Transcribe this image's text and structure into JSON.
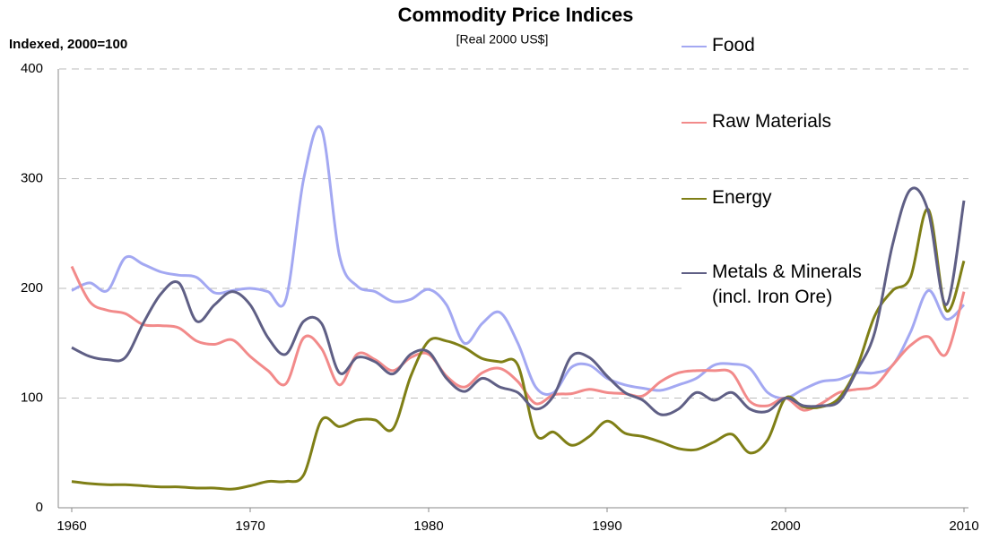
{
  "chart_data": {
    "type": "line",
    "title": "Commodity Price Indices",
    "subtitle": "[Real 2000 US$]",
    "y_label": "Indexed, 2000=100",
    "x": [
      1960,
      1961,
      1962,
      1963,
      1964,
      1965,
      1966,
      1967,
      1968,
      1969,
      1970,
      1971,
      1972,
      1973,
      1974,
      1975,
      1976,
      1977,
      1978,
      1979,
      1980,
      1981,
      1982,
      1983,
      1984,
      1985,
      1986,
      1987,
      1988,
      1989,
      1990,
      1991,
      1992,
      1993,
      1994,
      1995,
      1996,
      1997,
      1998,
      1999,
      2000,
      2001,
      2002,
      2003,
      2004,
      2005,
      2006,
      2007,
      2008,
      2009,
      2010
    ],
    "series": [
      {
        "name": "Food",
        "color": "#a3a8f2",
        "values": [
          198,
          205,
          198,
          228,
          222,
          215,
          212,
          210,
          196,
          198,
          200,
          197,
          190,
          300,
          345,
          230,
          202,
          197,
          188,
          190,
          199,
          185,
          150,
          168,
          178,
          150,
          110,
          105,
          128,
          130,
          118,
          112,
          109,
          107,
          112,
          118,
          130,
          131,
          127,
          105,
          100,
          108,
          115,
          117,
          123,
          123,
          130,
          160,
          198,
          172,
          185
        ]
      },
      {
        "name": "Raw Materials",
        "color": "#f28a8a",
        "values": [
          220,
          188,
          180,
          177,
          167,
          166,
          164,
          152,
          149,
          153,
          138,
          125,
          113,
          155,
          145,
          112,
          140,
          135,
          125,
          137,
          140,
          120,
          110,
          123,
          127,
          115,
          95,
          103,
          104,
          108,
          105,
          104,
          102,
          115,
          123,
          125,
          125,
          123,
          97,
          93,
          100,
          89,
          95,
          105,
          108,
          111,
          130,
          148,
          156,
          140,
          197
        ]
      },
      {
        "name": "Energy",
        "color": "#7f7f16",
        "values": [
          24,
          22,
          21,
          21,
          20,
          19,
          19,
          18,
          18,
          17,
          20,
          24,
          24,
          30,
          80,
          74,
          80,
          80,
          72,
          120,
          152,
          152,
          146,
          136,
          133,
          130,
          67,
          69,
          57,
          65,
          79,
          68,
          65,
          60,
          54,
          53,
          60,
          67,
          50,
          62,
          100,
          92,
          92,
          100,
          128,
          175,
          198,
          210,
          272,
          180,
          225
        ]
      },
      {
        "name": "Metals & Minerals (incl. Iron Ore)",
        "color": "#5f5f85",
        "values": [
          146,
          138,
          135,
          137,
          168,
          195,
          205,
          170,
          185,
          197,
          185,
          155,
          140,
          170,
          168,
          123,
          137,
          133,
          122,
          140,
          142,
          118,
          106,
          118,
          110,
          105,
          90,
          102,
          138,
          137,
          120,
          105,
          98,
          85,
          90,
          105,
          98,
          105,
          90,
          88,
          100,
          93,
          93,
          97,
          125,
          160,
          240,
          290,
          270,
          185,
          280
        ]
      }
    ],
    "xlim": [
      1960,
      2010
    ],
    "xticks": [
      1960,
      1970,
      1980,
      1990,
      2000,
      2010
    ],
    "ylim": [
      0,
      400
    ],
    "yticks": [
      0,
      100,
      200,
      300,
      400
    ],
    "grid": true
  }
}
